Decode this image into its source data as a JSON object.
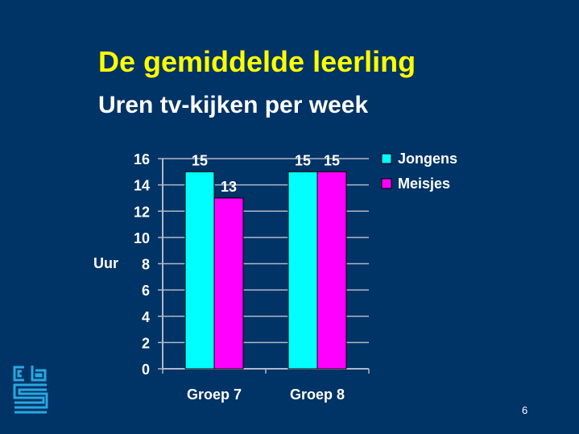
{
  "slide": {
    "title": "De gemiddelde leerling",
    "subtitle": "Uren tv-kijken per week",
    "page_number": "6",
    "logo": "cbs-logo"
  },
  "colors": {
    "background": "#003366",
    "title": "#ffff00",
    "jongens": "#00ffff",
    "meisjes": "#ff00ff"
  },
  "chart_data": {
    "type": "bar",
    "title": "Uren tv-kijken per week",
    "ylabel": "Uur",
    "xlabel": "",
    "categories": [
      "Groep 7",
      "Groep 8"
    ],
    "series": [
      {
        "name": "Jongens",
        "values": [
          15,
          15
        ],
        "color": "#00ffff"
      },
      {
        "name": "Meisjes",
        "values": [
          13,
          15
        ],
        "color": "#ff00ff"
      }
    ],
    "ylim": [
      0,
      16
    ],
    "yticks": [
      0,
      2,
      4,
      6,
      8,
      10,
      12,
      14,
      16
    ],
    "grid": true,
    "legend": "right",
    "data_labels": true
  }
}
